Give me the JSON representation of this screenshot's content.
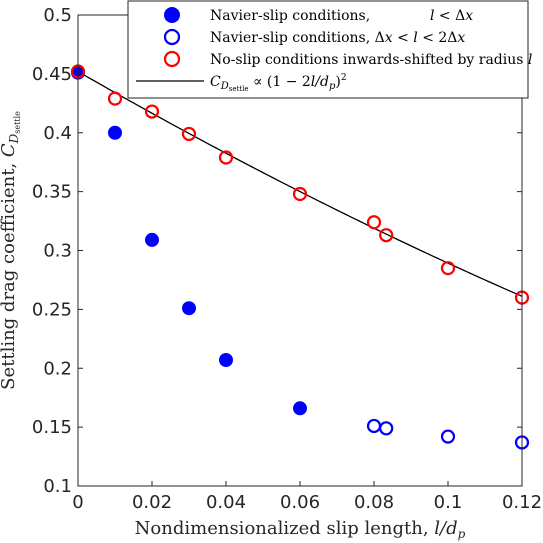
{
  "chart_data": {
    "type": "scatter",
    "xlabel": "Nondimensionalized slip length, l/d_p",
    "ylabel": "Settling drag coefficient, C_D_settle",
    "xlim": [
      0,
      0.12
    ],
    "ylim": [
      0.1,
      0.5
    ],
    "xticks": [
      "0",
      "0.02",
      "0.04",
      "0.06",
      "0.08",
      "0.1",
      "0.12"
    ],
    "yticks": [
      "0.1",
      "0.15",
      "0.2",
      "0.25",
      "0.3",
      "0.35",
      "0.4",
      "0.45",
      "0.5"
    ],
    "grid": false,
    "legend_position": "top-right",
    "series": [
      {
        "name": "Navier-slip conditions, l < Δx",
        "marker": "filled-circle",
        "color": "#0000ff",
        "x": [
          0,
          0.01,
          0.02,
          0.03,
          0.04,
          0.06
        ],
        "y": [
          0.451,
          0.4,
          0.309,
          0.251,
          0.207,
          0.166
        ]
      },
      {
        "name": "Navier-slip conditions, Δx < l < 2Δx",
        "marker": "open-circle",
        "color": "#0000ff",
        "x": [
          0.08,
          0.0833,
          0.1,
          0.12
        ],
        "y": [
          0.151,
          0.149,
          0.142,
          0.137
        ]
      },
      {
        "name": "No-slip conditions inwards-shifted by radius l",
        "marker": "open-circle",
        "color": "#ff0000",
        "x": [
          0,
          0.01,
          0.02,
          0.03,
          0.04,
          0.06,
          0.08,
          0.0833,
          0.1,
          0.12
        ],
        "y": [
          0.452,
          0.429,
          0.418,
          0.399,
          0.379,
          0.348,
          0.324,
          0.313,
          0.285,
          0.26
        ]
      },
      {
        "name": "C_D_settle ∝ (1 − 2l/d_p)^2",
        "marker": "line",
        "color": "#000000",
        "curve": {
          "a": 0.452,
          "b": 2
        }
      }
    ]
  }
}
